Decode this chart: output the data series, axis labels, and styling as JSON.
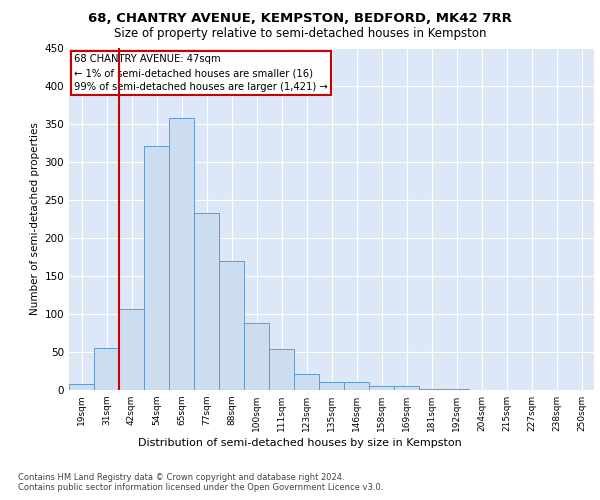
{
  "title1": "68, CHANTRY AVENUE, KEMPSTON, BEDFORD, MK42 7RR",
  "title2": "Size of property relative to semi-detached houses in Kempston",
  "xlabel": "Distribution of semi-detached houses by size in Kempston",
  "ylabel": "Number of semi-detached properties",
  "categories": [
    "19sqm",
    "31sqm",
    "42sqm",
    "54sqm",
    "65sqm",
    "77sqm",
    "88sqm",
    "100sqm",
    "111sqm",
    "123sqm",
    "135sqm",
    "146sqm",
    "158sqm",
    "169sqm",
    "181sqm",
    "192sqm",
    "204sqm",
    "215sqm",
    "227sqm",
    "238sqm",
    "250sqm"
  ],
  "values": [
    8,
    55,
    107,
    320,
    357,
    232,
    170,
    88,
    54,
    21,
    10,
    10,
    5,
    5,
    1,
    1,
    0,
    0,
    0,
    0,
    0
  ],
  "bar_color": "#ccddf0",
  "bar_edge_color": "#6699cc",
  "vline_x_index": 1.5,
  "vline_color": "#cc0000",
  "annotation_line1": "68 CHANTRY AVENUE: 47sqm",
  "annotation_line2": "← 1% of semi-detached houses are smaller (16)",
  "annotation_line3": "99% of semi-detached houses are larger (1,421) →",
  "annotation_box_color": "#ffffff",
  "annotation_box_edge_color": "#cc0000",
  "footer1": "Contains HM Land Registry data © Crown copyright and database right 2024.",
  "footer2": "Contains public sector information licensed under the Open Government Licence v3.0.",
  "ylim": [
    0,
    450
  ],
  "yticks": [
    0,
    50,
    100,
    150,
    200,
    250,
    300,
    350,
    400,
    450
  ],
  "plot_background": "#dce8f8",
  "fig_background": "#ffffff"
}
